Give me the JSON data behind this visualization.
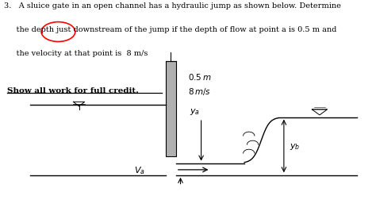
{
  "title_line1": "3.   A sluice gate in an open channel has a hydraulic jump as shown below. Determine",
  "title_line2": "     the depth just downstream of the jump if the depth of flow at point a is 0.5 m and",
  "title_line3": "     the velocity at that point is  8 m/s",
  "bold_text": "Show all work for full credit.",
  "annotation_05m": "0.5 m",
  "annotation_8ms": "8 m/s",
  "bg_color": "#ffffff",
  "text_color": "#000000",
  "gate_color": "#b0b0b0"
}
